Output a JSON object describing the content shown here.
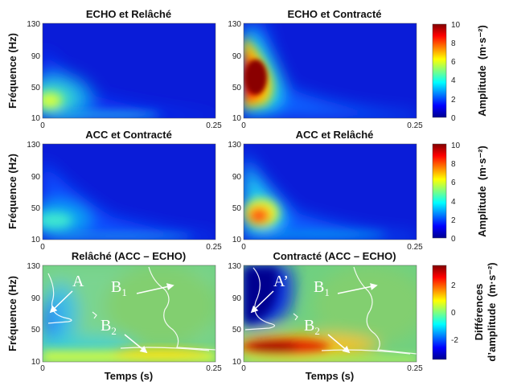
{
  "chart_data": [
    {
      "type": "heatmap",
      "title": "ECHO et Relâché",
      "ylabel": "Fréquence (Hz)",
      "xlabel": "",
      "xlim": [
        0,
        0.25
      ],
      "ylim": [
        10,
        130
      ],
      "xticks": [
        "0",
        "0.25"
      ],
      "yticks": [
        "130",
        "90",
        "50",
        "10"
      ],
      "colormap": "jet",
      "clim": [
        0,
        10
      ],
      "peak": {
        "t": 0.006,
        "f": 33,
        "amplitude": 4.5
      }
    },
    {
      "type": "heatmap",
      "title": "ECHO et Contracté",
      "ylabel": "",
      "xlabel": "",
      "xlim": [
        0,
        0.25
      ],
      "ylim": [
        10,
        130
      ],
      "xticks": [
        "0",
        "0.25"
      ],
      "yticks": [
        "130",
        "90",
        "50",
        "10"
      ],
      "colormap": "jet",
      "clim": [
        0,
        10
      ],
      "peak": {
        "t": 0.012,
        "f": 58,
        "amplitude": 10
      }
    },
    {
      "type": "heatmap",
      "title": "ACC et Contracté",
      "ylabel": "Fréquence (Hz)",
      "xlabel": "",
      "xlim": [
        0,
        0.25
      ],
      "ylim": [
        10,
        130
      ],
      "xticks": [
        "0",
        "0.25"
      ],
      "yticks": [
        "130",
        "90",
        "50",
        "10"
      ],
      "colormap": "jet",
      "clim": [
        0,
        10
      ],
      "peak": {
        "t": 0.01,
        "f": 33,
        "amplitude": 3.5
      }
    },
    {
      "type": "heatmap",
      "title": "ACC et Relâché",
      "ylabel": "",
      "xlabel": "",
      "xlim": [
        0,
        0.25
      ],
      "ylim": [
        10,
        130
      ],
      "xticks": [
        "0",
        "0.25"
      ],
      "yticks": [
        "130",
        "90",
        "50",
        "10"
      ],
      "colormap": "jet",
      "clim": [
        0,
        10
      ],
      "peak": {
        "t": 0.015,
        "f": 38,
        "amplitude": 8
      }
    },
    {
      "type": "heatmap",
      "title": "Relâché (ACC – ECHO)",
      "ylabel": "Fréquence (Hz)",
      "xlabel": "Temps (s)",
      "xlim": [
        0,
        0.25
      ],
      "ylim": [
        10,
        130
      ],
      "xticks": [
        "0",
        "0.25"
      ],
      "yticks": [
        "130",
        "90",
        "50",
        "10"
      ],
      "colormap": "jet",
      "clim": [
        -3.4,
        3.4
      ],
      "annotations": [
        {
          "text": "A",
          "sub": ""
        },
        {
          "text": "B",
          "sub": "1"
        },
        {
          "text": "B",
          "sub": "2"
        }
      ]
    },
    {
      "type": "heatmap",
      "title": "Contracté (ACC – ECHO)",
      "ylabel": "",
      "xlabel": "Temps (s)",
      "xlim": [
        0,
        0.25
      ],
      "ylim": [
        10,
        130
      ],
      "xticks": [
        "0",
        "0.25"
      ],
      "yticks": [
        "130",
        "90",
        "50",
        "10"
      ],
      "colormap": "jet",
      "clim": [
        -3.4,
        3.4
      ],
      "annotations": [
        {
          "text": "A’",
          "sub": ""
        },
        {
          "text": "B",
          "sub": "1"
        },
        {
          "text": "B",
          "sub": "2"
        }
      ]
    }
  ],
  "colorbars": [
    {
      "label": "Amplitude  (m·s⁻²)",
      "ticks": [
        "10",
        "8",
        "6",
        "4",
        "2",
        "0"
      ],
      "range": [
        0,
        10
      ]
    },
    {
      "label": "Amplitude  (m·s⁻²)",
      "ticks": [
        "10",
        "8",
        "6",
        "4",
        "2",
        "0"
      ],
      "range": [
        0,
        10
      ]
    },
    {
      "label1": "Différences",
      "label2": "d’amplitude  (m·s⁻²)",
      "ticks": [
        "2",
        "0",
        "-2"
      ],
      "range": [
        -3.4,
        3.4
      ]
    }
  ]
}
